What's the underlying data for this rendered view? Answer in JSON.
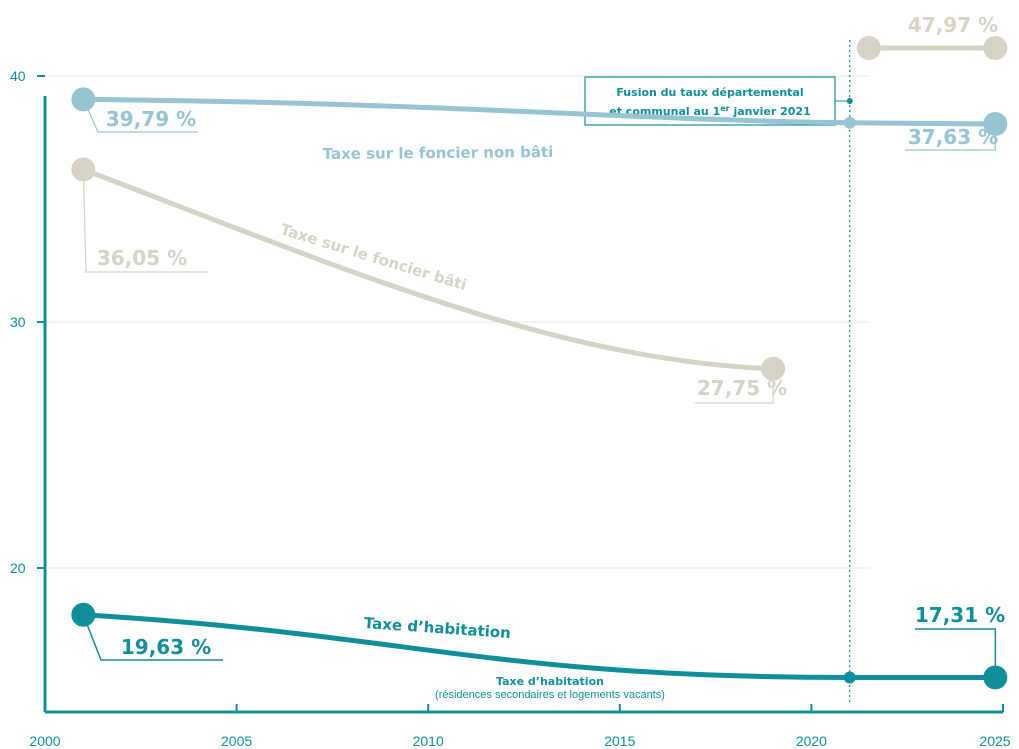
{
  "colors": {
    "axis": "#0f8f9c",
    "habitation": "#0f8f9c",
    "non_bati": "#96c4d2",
    "bati": "#d6d2c4",
    "grid": "#e8e8e8"
  },
  "chart_data": {
    "type": "line",
    "xlim": [
      2000,
      2025
    ],
    "ylim": [
      14,
      44
    ],
    "x_ticks": [
      "2000",
      "2005",
      "2010",
      "2015",
      "2020",
      "2025"
    ],
    "y_ticks": [
      "20",
      "30",
      "40"
    ],
    "grid": "horizontal",
    "series": [
      {
        "key": "non_bati",
        "name": "Taxe sur le foncier non bâti",
        "points": [
          [
            2001,
            39.05
          ],
          [
            2021,
            38.1
          ],
          [
            2024.8,
            38.05
          ]
        ],
        "labels": [
          "39,79 %",
          "37,63 %"
        ]
      },
      {
        "key": "bati",
        "name": "Taxe sur le foncier bâti",
        "points": [
          [
            2001,
            36.2
          ],
          [
            2019,
            28.1
          ]
        ],
        "labels": [
          "36,05 %",
          "27,75 %"
        ],
        "after_2021": {
          "points": [
            [
              2021.5,
              47.97
            ],
            [
              2024.8,
              47.97
            ]
          ],
          "label": "47,97 %"
        }
      },
      {
        "key": "habitation",
        "name": "Taxe d’habitation",
        "points": [
          [
            2001,
            18.1
          ],
          [
            2021,
            15.55
          ],
          [
            2024.8,
            15.55
          ]
        ],
        "labels": [
          "19,63 %",
          "17,31 %"
        ]
      }
    ],
    "annotations": {
      "fusion_line1": "Fusion du taux départemental",
      "fusion_line2": "et communal au 1",
      "fusion_sup": "er",
      "fusion_line2_end": " janvier 2021",
      "fusion_x": 2021,
      "th2_title": "Taxe d’habitation",
      "th2_sub": "(résidences secondaires et logements vacants)"
    }
  }
}
